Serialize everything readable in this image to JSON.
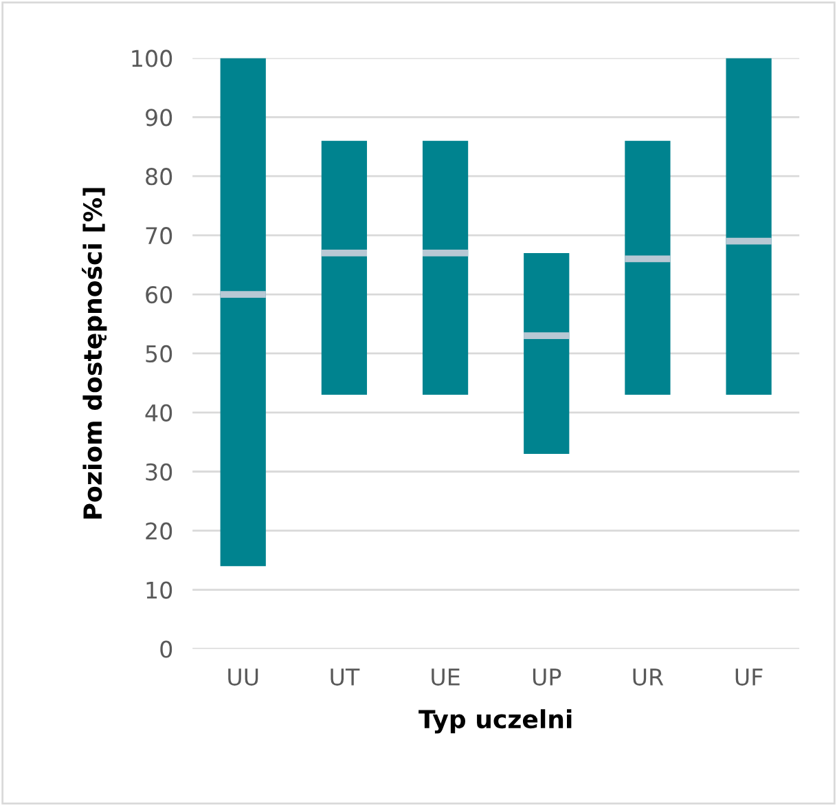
{
  "chart_data": {
    "type": "box",
    "xlabel": "Typ uczelni",
    "ylabel": "Poziom dostępności [%]",
    "categories": [
      "UU",
      "UT",
      "UE",
      "UP",
      "UR",
      "UF"
    ],
    "color": "#00838f",
    "boxes": [
      {
        "low": 14,
        "q1": 14,
        "median": 60,
        "q3": 100,
        "high": 100
      },
      {
        "low": 43,
        "q1": 43,
        "median": 67,
        "q3": 86,
        "high": 86
      },
      {
        "low": 43,
        "q1": 43,
        "median": 67,
        "q3": 86,
        "high": 86
      },
      {
        "low": 33,
        "q1": 33,
        "median": 53,
        "q3": 67,
        "high": 67
      },
      {
        "low": 43,
        "q1": 43,
        "median": 66,
        "q3": 86,
        "high": 86
      },
      {
        "low": 43,
        "q1": 43,
        "median": 69,
        "q3": 100,
        "high": 100
      }
    ],
    "ylim": [
      0,
      100
    ],
    "yticks": [
      0,
      10,
      20,
      30,
      40,
      50,
      60,
      70,
      80,
      90,
      100
    ],
    "grid": "y"
  }
}
